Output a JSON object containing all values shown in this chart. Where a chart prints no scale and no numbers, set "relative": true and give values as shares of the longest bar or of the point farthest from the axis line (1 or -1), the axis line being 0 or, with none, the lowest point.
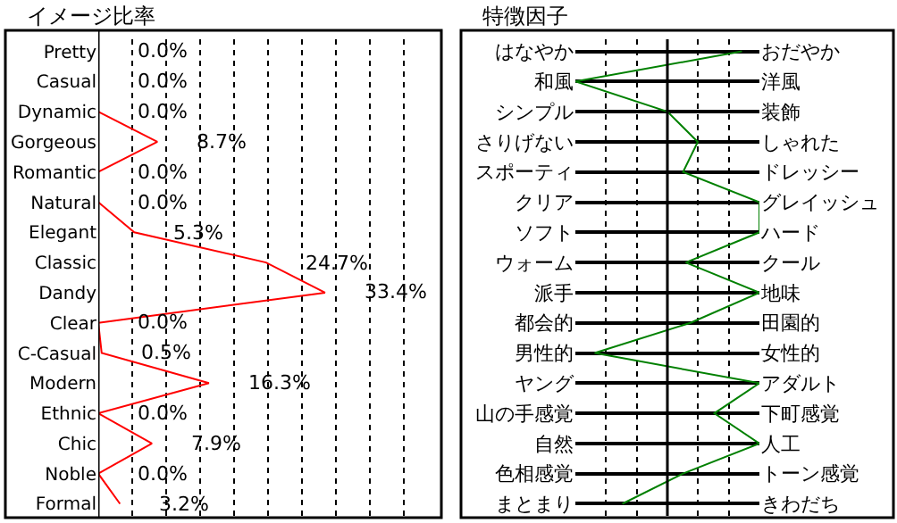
{
  "chart_data": [
    {
      "type": "line",
      "orientation": "horizontal",
      "title": "イメージ比率",
      "categories": [
        "Pretty",
        "Casual",
        "Dynamic",
        "Gorgeous",
        "Romantic",
        "Natural",
        "Elegant",
        "Classic",
        "Dandy",
        "Clear",
        "C-Casual",
        "Modern",
        "Ethnic",
        "Chic",
        "Noble",
        "Formal"
      ],
      "series": [
        {
          "color": "#ff0000",
          "values": [
            0.0,
            0.0,
            0.0,
            8.7,
            0.0,
            0.0,
            5.3,
            24.7,
            33.4,
            0.0,
            0.5,
            16.3,
            0.0,
            7.9,
            0.0,
            3.2
          ],
          "value_labels": [
            "0.0%",
            "0.0%",
            "0.0%",
            "8.7%",
            "0.0%",
            "0.0%",
            "5.3%",
            "24.7%",
            "33.4%",
            "0.0%",
            "0.5%",
            "16.3%",
            "0.0%",
            "7.9%",
            "0.0%",
            "3.2%"
          ]
        }
      ],
      "xlim": [
        0,
        50
      ],
      "xticks": [
        {
          "value": 0,
          "label": null
        },
        {
          "value": 5,
          "label": null
        },
        {
          "value": 10,
          "label": null
        },
        {
          "value": 15,
          "label": null
        },
        {
          "value": 20,
          "label": null
        },
        {
          "value": 25,
          "label": null
        },
        {
          "value": 30,
          "label": null
        },
        {
          "value": 35,
          "label": null
        },
        {
          "value": 40,
          "label": null
        },
        {
          "value": 45,
          "label": null
        }
      ],
      "grid": "x",
      "marker": "none"
    },
    {
      "type": "line",
      "orientation": "horizontal",
      "title": "特徴因子",
      "relative": true,
      "categories": [
        "はなやか",
        "和風",
        "シンプル",
        "さりげない",
        "スポーティ",
        "クリア",
        "ソフト",
        "ウォーム",
        "派手",
        "都会的",
        "男性的",
        "ヤング",
        "山の手感覚",
        "自然",
        "色相感覚",
        "まとまり"
      ],
      "y2_categories": [
        "おだやか",
        "洋風",
        "装飾",
        "しゃれた",
        "ドレッシー",
        "グレイッシュ",
        "ハード",
        "クール",
        "地味",
        "田園的",
        "女性的",
        "アダルト",
        "下町感覚",
        "人工",
        "トーン感覚",
        "きわだち"
      ],
      "series": [
        {
          "color": "#008000",
          "values": [
            0.81,
            -1.0,
            0.0,
            0.33,
            0.17,
            1.0,
            1.0,
            0.2,
            1.0,
            0.25,
            -0.79,
            1.0,
            0.51,
            1.0,
            0.17,
            -0.49
          ]
        }
      ],
      "grid": true,
      "marker": "none"
    }
  ]
}
